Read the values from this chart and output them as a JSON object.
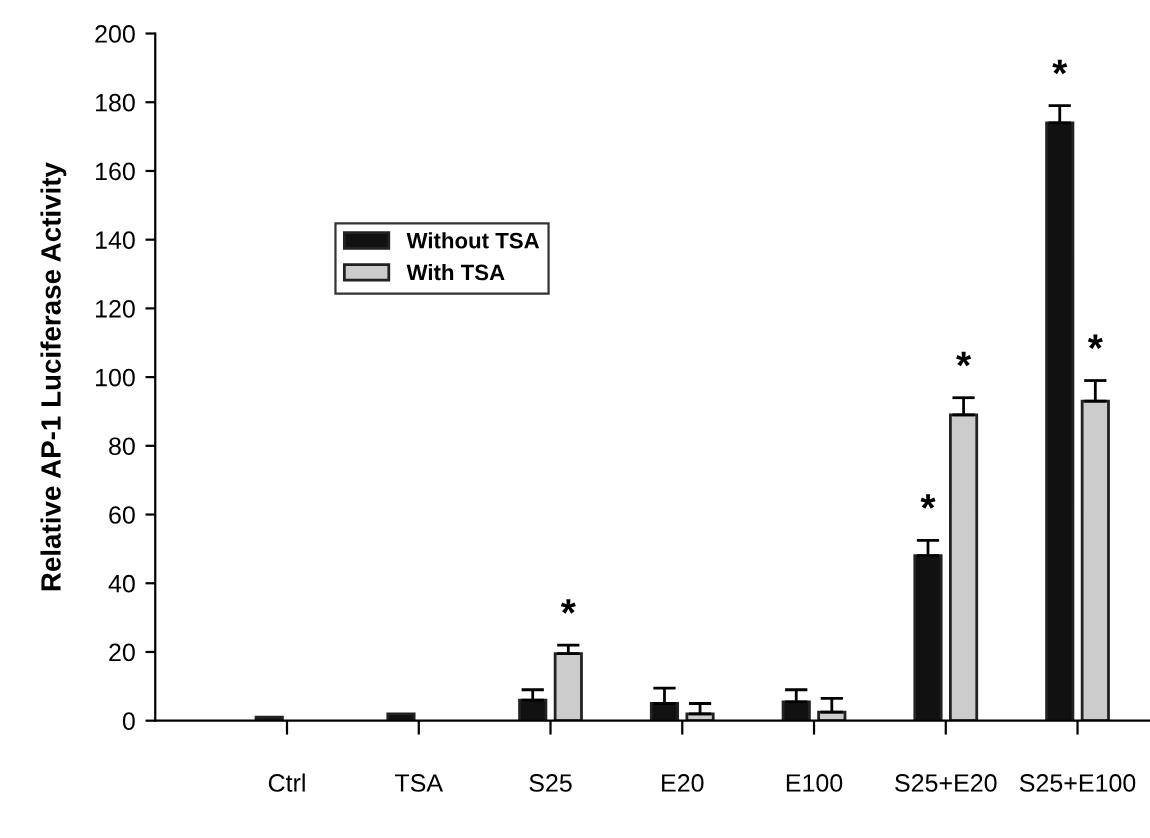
{
  "chart_data": {
    "type": "bar",
    "ylabel": "Relative AP-1 Luciferase Activity",
    "categories": [
      "Ctrl",
      "TSA",
      "S25",
      "E20",
      "E100",
      "S25+E20",
      "S25+E100"
    ],
    "series": [
      {
        "name": "Without TSA",
        "color": "#111111",
        "values": [
          1,
          2,
          6,
          5,
          5.5,
          48,
          174
        ],
        "errors": [
          null,
          null,
          3,
          4.5,
          3.5,
          4.5,
          5
        ]
      },
      {
        "name": "With TSA",
        "color": "#cccccc",
        "values": [
          null,
          null,
          19.5,
          2,
          2.5,
          89,
          93
        ],
        "errors": [
          null,
          null,
          2.5,
          3,
          4,
          5,
          6
        ]
      }
    ],
    "annotations": [
      {
        "text": "*",
        "x": "S25",
        "y": 19.5
      },
      {
        "text": "*",
        "x": "S25+E20",
        "y": 48
      },
      {
        "text": "*",
        "x": "S25+E20",
        "y": 89
      },
      {
        "text": "*",
        "x": "S25+E100",
        "y": 174
      },
      {
        "text": "*",
        "x": "S25+E100",
        "y": 93
      }
    ],
    "ylim": [
      0,
      200
    ],
    "yticks": [
      0,
      20,
      40,
      60,
      80,
      100,
      120,
      140,
      160,
      180,
      200
    ],
    "grid": false,
    "legend": "top left"
  }
}
